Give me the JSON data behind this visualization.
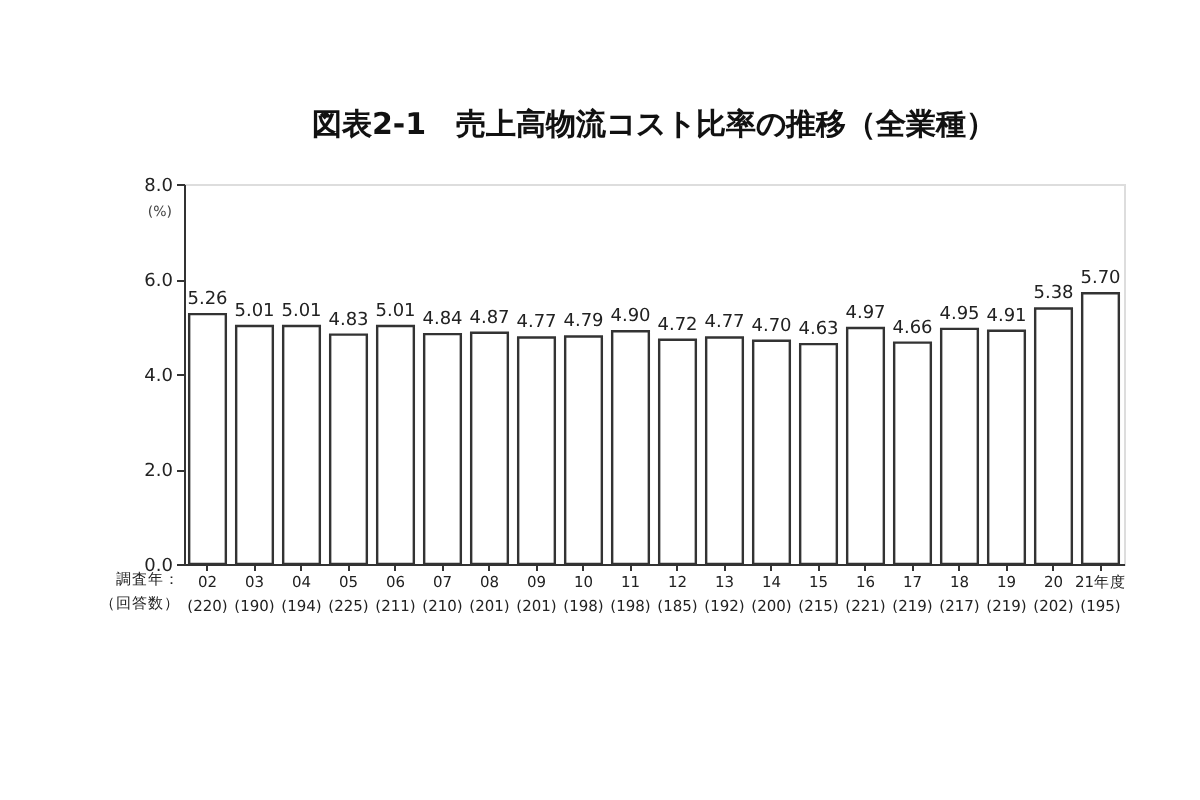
{
  "chart_data": {
    "type": "bar",
    "title": "図表2-1　売上高物流コスト比率の推移（全業種）",
    "xlabel": "調査年：",
    "annotations": [
      "（回答数）"
    ],
    "ylabel": "(%)",
    "categories": [
      "02\n(220)",
      "03\n(190)",
      "04\n(194)",
      "05\n(225)",
      "06\n(211)",
      "07\n(210)",
      "08\n(201)",
      "09\n(201)",
      "10\n(198)",
      "11\n(198)",
      "12\n(185)",
      "13\n(192)",
      "14\n(200)",
      "15\n(215)",
      "16\n(221)",
      "17\n(219)",
      "18\n(217)",
      "19\n(219)",
      "20\n(202)",
      "21年度\n(195)"
    ],
    "values": [
      5.26,
      5.01,
      5.01,
      4.83,
      5.01,
      4.84,
      4.87,
      4.77,
      4.79,
      4.9,
      4.72,
      4.77,
      4.7,
      4.63,
      4.97,
      4.66,
      4.95,
      4.91,
      5.38,
      5.7
    ],
    "value_labels": [
      "5.26",
      "5.01",
      "5.01",
      "4.83",
      "5.01",
      "4.84",
      "4.87",
      "4.77",
      "4.79",
      "4.90",
      "4.72",
      "4.77",
      "4.70",
      "4.63",
      "4.97",
      "4.66",
      "4.95",
      "4.91",
      "5.38",
      "5.70"
    ],
    "color": "#ffffff",
    "ylim": [
      0,
      8
    ],
    "yticks": [
      {
        "value": 0,
        "label": "0.0"
      },
      {
        "value": 2,
        "label": "2.0"
      },
      {
        "value": 4,
        "label": "4.0"
      },
      {
        "value": 6,
        "label": "6.0"
      },
      {
        "value": 8,
        "label": "8.0"
      }
    ],
    "grid": false
  }
}
